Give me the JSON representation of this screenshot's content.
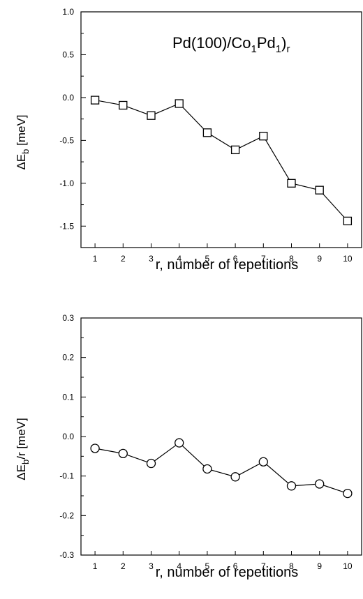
{
  "chart_data": [
    {
      "type": "line",
      "marker": "square",
      "title_parts": [
        {
          "text": "Pd(100)/Co",
          "sub": false
        },
        {
          "text": "1",
          "sub": true
        },
        {
          "text": "Pd",
          "sub": false
        },
        {
          "text": "1",
          "sub": true
        },
        {
          "text": ")",
          "sub": false
        },
        {
          "text": "r",
          "sub": true
        }
      ],
      "xlabel": "r, number of repetitions",
      "ylabel_parts": [
        {
          "text": "ΔE",
          "sub": false
        },
        {
          "text": "b",
          "sub": true
        },
        {
          "text": "  [meV]",
          "sub": false
        }
      ],
      "x": [
        1,
        2,
        3,
        4,
        5,
        6,
        7,
        8,
        9,
        10
      ],
      "y": [
        -0.03,
        -0.09,
        -0.21,
        -0.07,
        -0.41,
        -0.61,
        -0.45,
        -1.0,
        -1.08,
        -1.44
      ],
      "xlim": [
        0.5,
        10.5
      ],
      "ylim": [
        -1.75,
        1.0
      ],
      "xticks": [
        "1",
        "2",
        "3",
        "4",
        "5",
        "6",
        "7",
        "8",
        "9",
        "10"
      ],
      "yticks": [
        "-1.5",
        "-1.0",
        "-0.5",
        "0.0",
        "0.5",
        "1.0"
      ],
      "grid": false
    },
    {
      "type": "line",
      "marker": "circle",
      "xlabel": "r, number of repetitions",
      "ylabel_parts": [
        {
          "text": "ΔE",
          "sub": false
        },
        {
          "text": "b",
          "sub": true
        },
        {
          "text": "/r  [meV]",
          "sub": false
        }
      ],
      "x": [
        1,
        2,
        3,
        4,
        5,
        6,
        7,
        8,
        9,
        10
      ],
      "y": [
        -0.03,
        -0.043,
        -0.068,
        -0.016,
        -0.082,
        -0.102,
        -0.064,
        -0.125,
        -0.12,
        -0.144
      ],
      "xlim": [
        0.5,
        10.5
      ],
      "ylim": [
        -0.3,
        0.3
      ],
      "xticks": [
        "1",
        "2",
        "3",
        "4",
        "5",
        "6",
        "7",
        "8",
        "9",
        "10"
      ],
      "yticks": [
        "-0.3",
        "-0.2",
        "-0.1",
        "0.0",
        "0.1",
        "0.2",
        "0.3"
      ],
      "grid": false
    }
  ]
}
